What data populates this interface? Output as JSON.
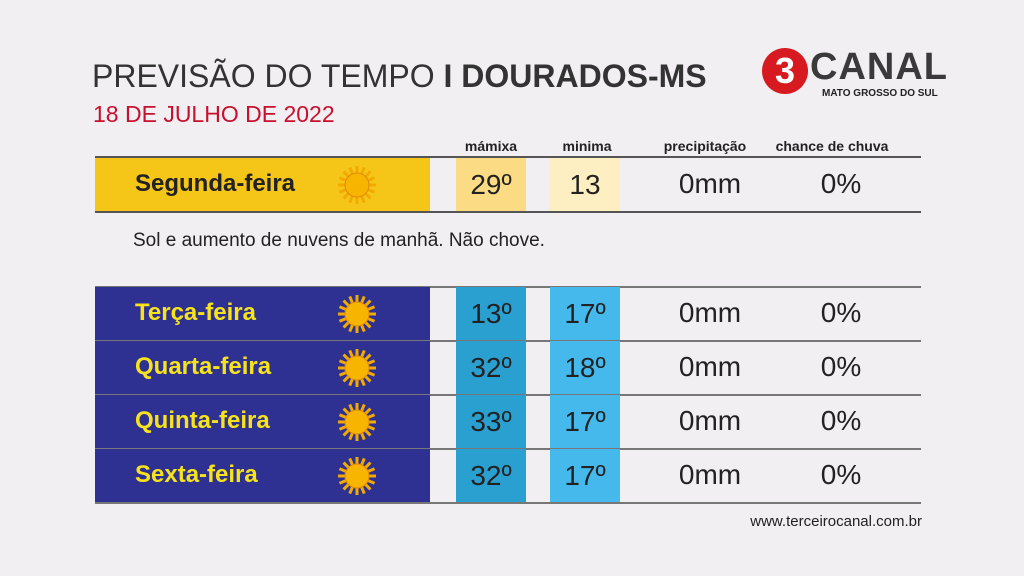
{
  "header": {
    "title": "PREVISÃO DO TEMPO",
    "location": "I DOURADOS-MS",
    "date": "18 DE JULHO DE 2022"
  },
  "logo": {
    "number": "3",
    "name": "CANAL",
    "region": "MATO GROSSO DO SUL"
  },
  "columns": [
    "mámixa",
    "minima",
    "precipitação",
    "chance de chuva"
  ],
  "today": {
    "day": "Segunda-feira",
    "max": "29º",
    "min": "13",
    "precipitation": "0mm",
    "chance": "0%",
    "description": "Sol e aumento de nuvens de manhã. Não chove."
  },
  "forecast": [
    {
      "day": "Terça-feira",
      "max": "13º",
      "min": "17º",
      "precipitation": "0mm",
      "chance": "0%"
    },
    {
      "day": "Quarta-feira",
      "max": "32º",
      "min": "18º",
      "precipitation": "0mm",
      "chance": "0%"
    },
    {
      "day": "Quinta-feira",
      "max": "33º",
      "min": "17º",
      "precipitation": "0mm",
      "chance": "0%"
    },
    {
      "day": "Sexta-feira",
      "max": "32º",
      "min": "17º",
      "precipitation": "0mm",
      "chance": "0%"
    }
  ],
  "footer": {
    "url": "www.terceirocanal.com.br"
  }
}
